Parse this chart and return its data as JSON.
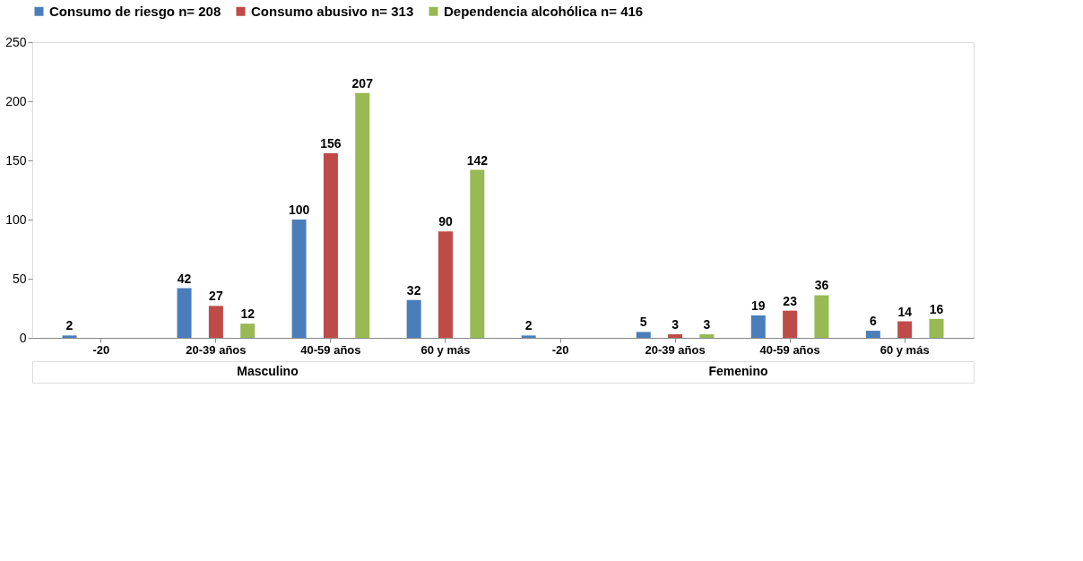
{
  "chart_data": {
    "type": "bar",
    "categories": [
      "-20",
      "20-39 años",
      "40-59 años",
      "60 y más",
      "-20",
      "20-39 años",
      "40-59 años",
      "60 y más"
    ],
    "series": [
      {
        "name": "Consumo de riesgo  n= 208",
        "color": "#4a7ebb",
        "values": [
          2,
          42,
          100,
          32,
          2,
          5,
          19,
          6
        ]
      },
      {
        "name": "Consumo abusivo  n= 313",
        "color": "#be4b48",
        "values": [
          null,
          27,
          156,
          90,
          null,
          3,
          23,
          14
        ]
      },
      {
        "name": "Dependencia alcohólica  n= 416",
        "color": "#98b954",
        "values": [
          null,
          12,
          207,
          142,
          null,
          3,
          36,
          16
        ]
      }
    ],
    "annotations": [
      "Masculino",
      "Femenino"
    ],
    "ylim": [
      0,
      250
    ],
    "yticks": [
      0,
      50,
      100,
      150,
      200,
      250
    ],
    "grid": false,
    "legend": "top",
    "data_labels": true
  }
}
